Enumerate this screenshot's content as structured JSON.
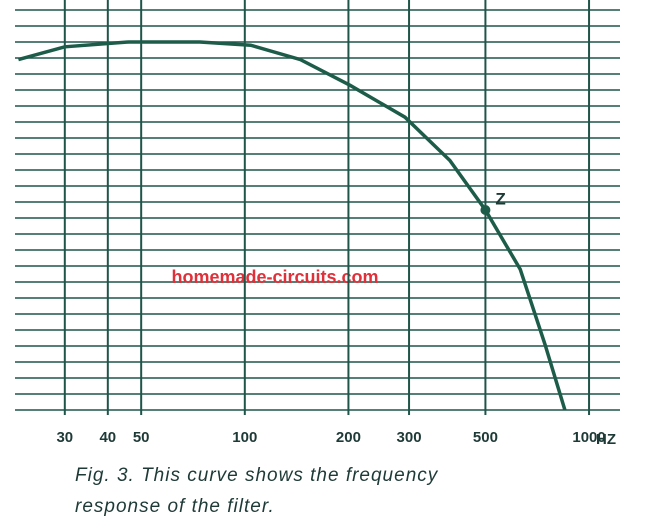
{
  "chart_data": {
    "type": "line",
    "x": [
      22,
      30,
      46,
      74,
      104,
      145,
      202,
      292,
      394,
      500,
      631,
      745,
      851
    ],
    "values": [
      21.9,
      22.7,
      23,
      23,
      22.8,
      21.9,
      20.3,
      18.3,
      15.6,
      12.5,
      8.8,
      4.1,
      0
    ],
    "color": "#1e5c4a",
    "xlim": [
      21.5,
      1230
    ],
    "ylim": [
      0,
      25
    ],
    "xscale": "log",
    "xticks": [
      30,
      40,
      50,
      100,
      200,
      300,
      500,
      1000
    ],
    "x_label": "HZ",
    "grid": true,
    "annotations": [
      {
        "text": "Z",
        "x": 500,
        "y": 12.5
      }
    ],
    "watermark": "homemade-circuits.com",
    "caption": [
      "Fig. 3. This curve shows the frequency",
      "response of the filter."
    ]
  }
}
